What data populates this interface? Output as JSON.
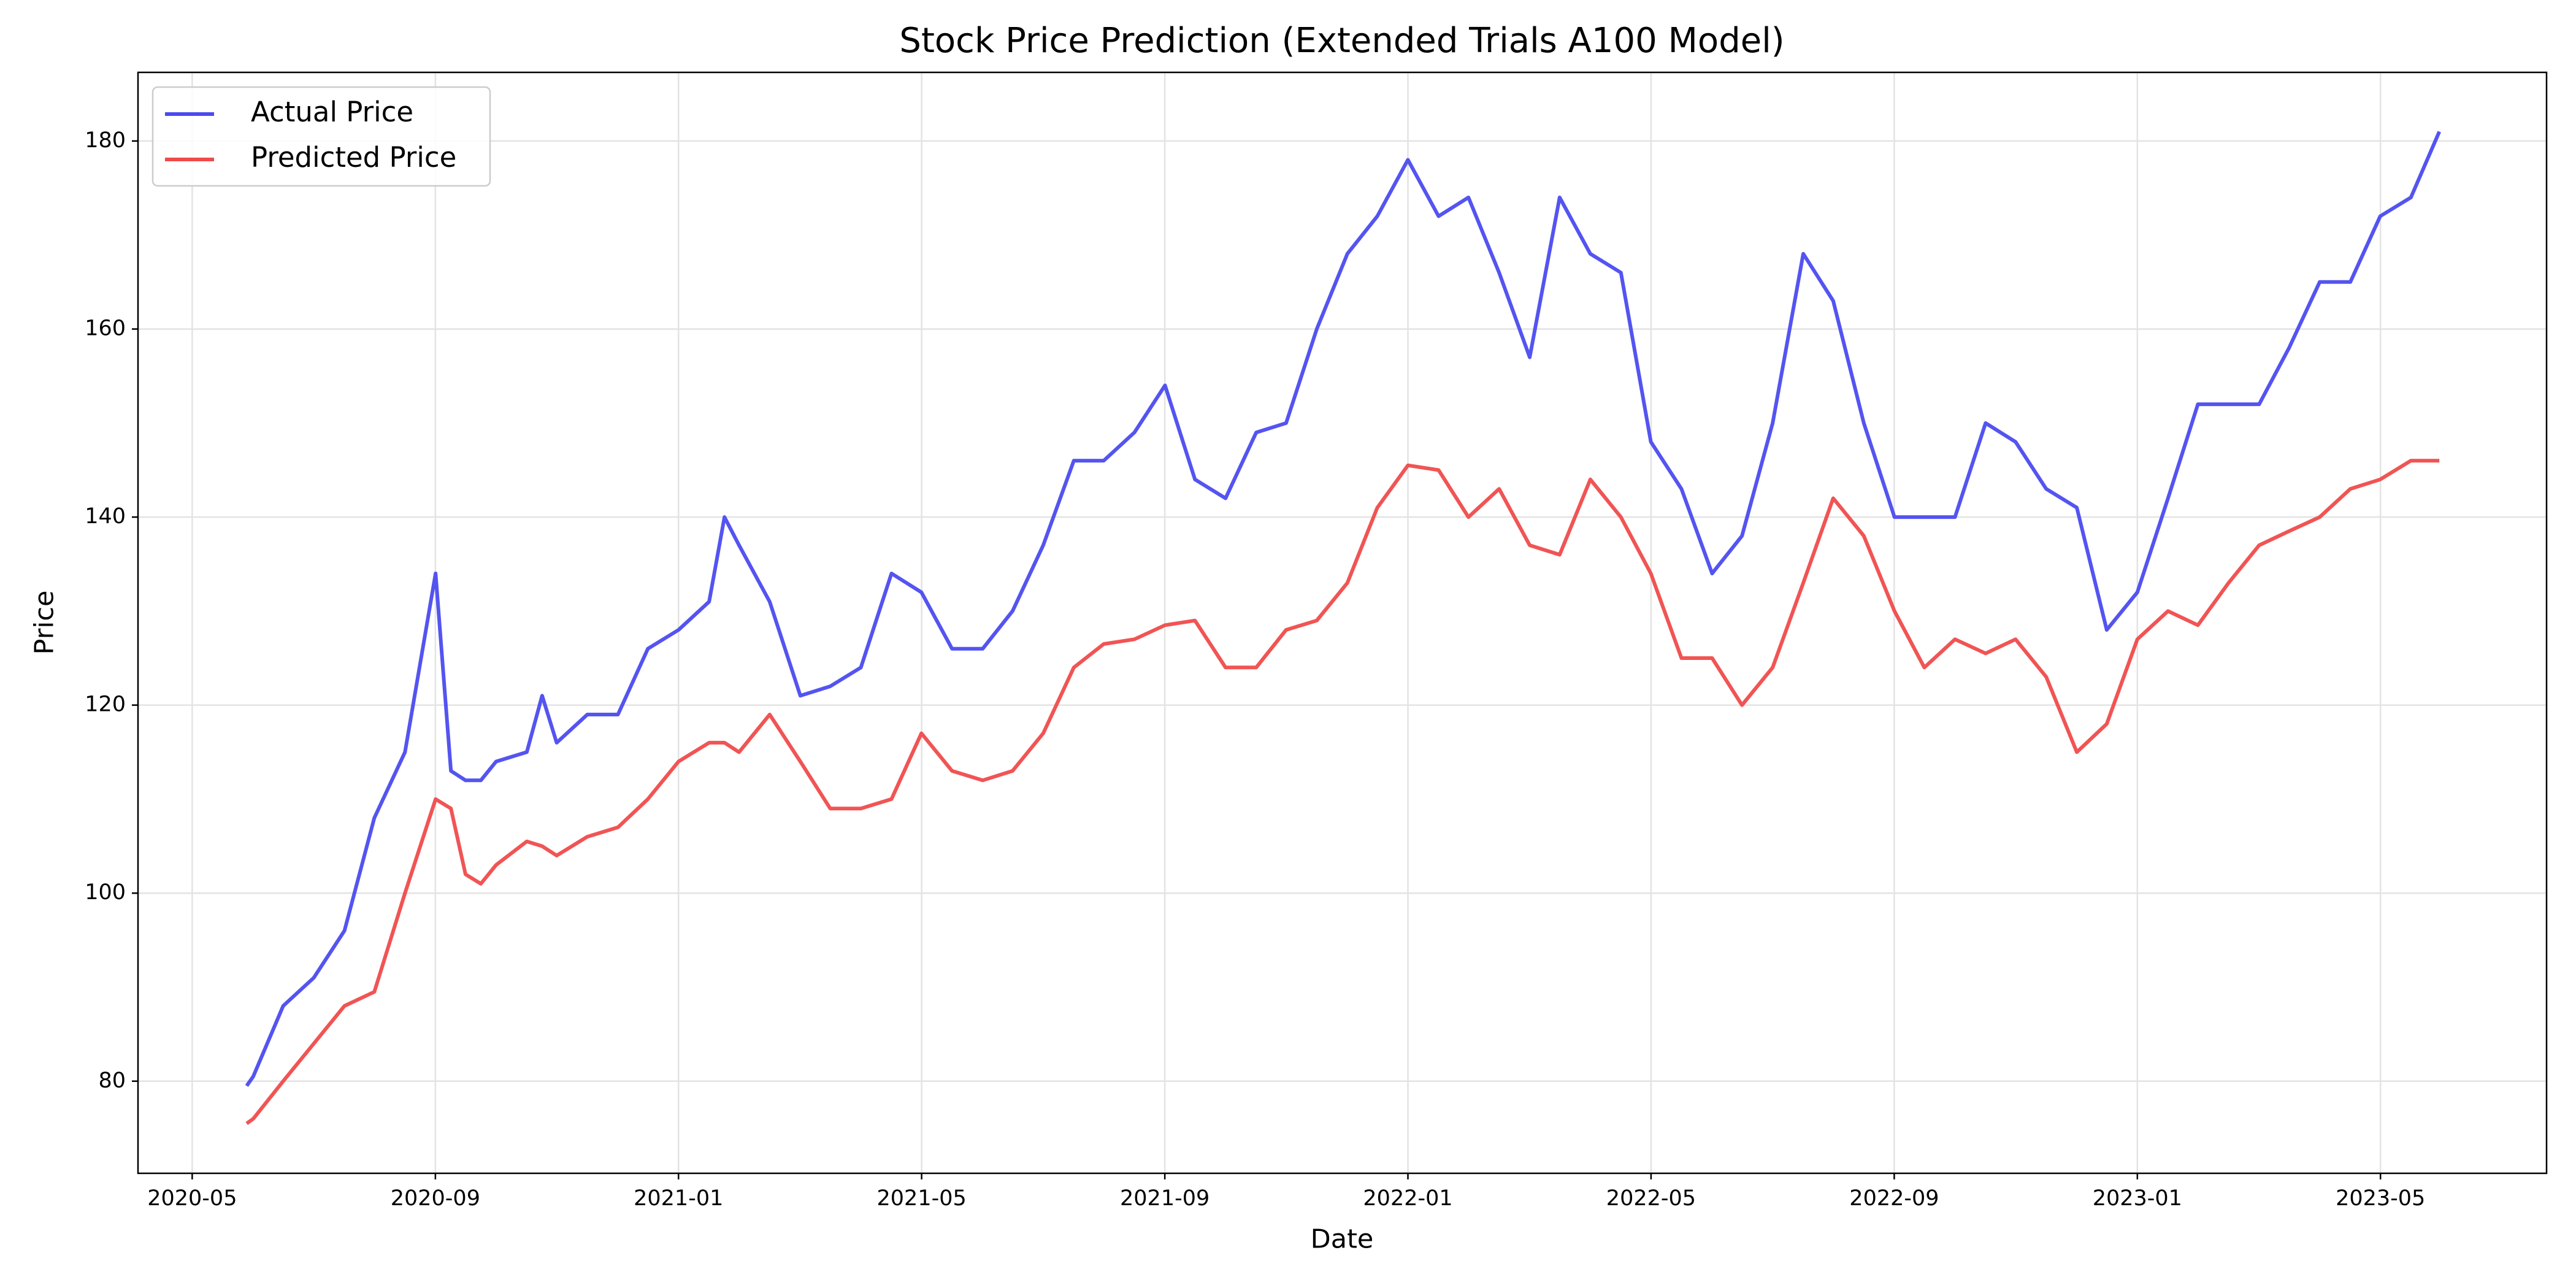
{
  "chart_data": {
    "type": "line",
    "title": "Stock Price Prediction (Extended Trials A100 Model)",
    "x_label": "Date",
    "y_label": "Price",
    "x": [
      2020.408,
      2020.417,
      2020.458,
      2020.5,
      2020.542,
      2020.583,
      2020.625,
      2020.667,
      2020.688,
      2020.708,
      2020.729,
      2020.75,
      2020.792,
      2020.813,
      2020.833,
      2020.875,
      2020.917,
      2020.958,
      2021.0,
      2021.042,
      2021.063,
      2021.083,
      2021.125,
      2021.167,
      2021.208,
      2021.25,
      2021.292,
      2021.333,
      2021.375,
      2021.417,
      2021.458,
      2021.5,
      2021.542,
      2021.583,
      2021.625,
      2021.667,
      2021.708,
      2021.75,
      2021.792,
      2021.833,
      2021.875,
      2021.917,
      2021.958,
      2022.0,
      2022.042,
      2022.083,
      2022.125,
      2022.167,
      2022.208,
      2022.25,
      2022.292,
      2022.333,
      2022.375,
      2022.417,
      2022.458,
      2022.5,
      2022.542,
      2022.583,
      2022.625,
      2022.667,
      2022.708,
      2022.75,
      2022.792,
      2022.833,
      2022.875,
      2022.917,
      2022.958,
      2023.0,
      2023.042,
      2023.083,
      2023.125,
      2023.167,
      2023.208,
      2023.25,
      2023.292,
      2023.333,
      2023.375,
      2023.414
    ],
    "series": [
      {
        "name": "Actual Price",
        "color": "#4b4bf0",
        "values": [
          79.5,
          80.5,
          88,
          91,
          96,
          108,
          115,
          134,
          113,
          112,
          112,
          114,
          115,
          121,
          116,
          119,
          119,
          126,
          128,
          131,
          140,
          137,
          131,
          121,
          122,
          124,
          134,
          132,
          126,
          126,
          130,
          137,
          146,
          146,
          149,
          154,
          144,
          142,
          149,
          150,
          160,
          168,
          172,
          178,
          172,
          174,
          166,
          157,
          174,
          168,
          166,
          148,
          143,
          134,
          138,
          150,
          168,
          163,
          150,
          140,
          140,
          140,
          150,
          148,
          143,
          141,
          128,
          132,
          142,
          152,
          152,
          152,
          158,
          165,
          165,
          172,
          174,
          181
        ]
      },
      {
        "name": "Predicted Price",
        "color": "#f04b4b",
        "values": [
          75.5,
          76,
          80,
          84,
          88,
          89.5,
          100,
          110,
          109,
          102,
          101,
          103,
          105.5,
          105,
          104,
          106,
          107,
          110,
          114,
          116,
          116,
          115,
          119,
          114,
          109,
          109,
          110,
          117,
          113,
          112,
          113,
          117,
          124,
          126.5,
          127,
          128.5,
          129,
          124,
          124,
          128,
          129,
          133,
          141,
          145.5,
          145,
          140,
          143,
          137,
          136,
          144,
          140,
          134,
          125,
          125,
          120,
          124,
          133,
          142,
          138,
          130,
          124,
          127,
          125.5,
          127,
          123,
          115,
          118,
          127,
          130,
          128.5,
          133,
          137,
          138.5,
          140,
          143,
          144,
          146,
          146
        ]
      }
    ],
    "xlim": [
      2020.259,
      2023.561
    ],
    "ylim": [
      70.2,
      187.3
    ],
    "xticks": [
      {
        "value": 2020.3333,
        "label": "2020-05"
      },
      {
        "value": 2020.6667,
        "label": "2020-09"
      },
      {
        "value": 2021.0,
        "label": "2021-01"
      },
      {
        "value": 2021.3333,
        "label": "2021-05"
      },
      {
        "value": 2021.6667,
        "label": "2021-09"
      },
      {
        "value": 2022.0,
        "label": "2022-01"
      },
      {
        "value": 2022.3333,
        "label": "2022-05"
      },
      {
        "value": 2022.6667,
        "label": "2022-09"
      },
      {
        "value": 2023.0,
        "label": "2023-01"
      },
      {
        "value": 2023.3333,
        "label": "2023-05"
      }
    ],
    "yticks": [
      80,
      100,
      120,
      140,
      160,
      180
    ],
    "grid": true,
    "legend": "upper-left"
  }
}
